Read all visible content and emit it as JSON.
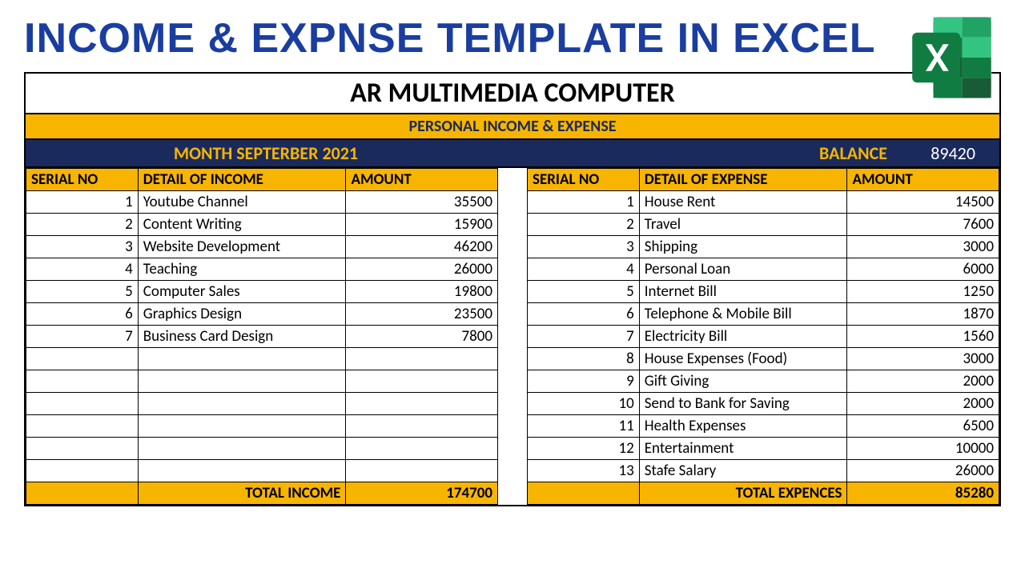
{
  "page": {
    "title": "INCOME & EXPNSE  TEMPLATE IN EXCEL"
  },
  "colors": {
    "title_text": "#1a3da0",
    "header_bg": "#f7b500",
    "navy_bg": "#1a2a5c",
    "balance_label": "#f7b500",
    "balance_value": "#ffffff",
    "border": "#000000",
    "background": "#ffffff",
    "excel_dark": "#185c37",
    "excel_mid": "#21a366",
    "excel_light": "#33c481"
  },
  "sheet": {
    "company": "AR MULTIMEDIA COMPUTER",
    "subheader": "PERSONAL INCOME & EXPENSE",
    "month_label": "MONTH SEPTERBER 2021",
    "balance_label": "BALANCE",
    "balance_value": "89420"
  },
  "income": {
    "columns": {
      "serial": "SERIAL NO",
      "detail": "DETAIL OF INCOME",
      "amount": "AMOUNT"
    },
    "rows": [
      {
        "serial": "1",
        "detail": "Youtube Channel",
        "amount": "35500"
      },
      {
        "serial": "2",
        "detail": "Content Writing",
        "amount": "15900"
      },
      {
        "serial": "3",
        "detail": "Website Development",
        "amount": "46200"
      },
      {
        "serial": "4",
        "detail": "Teaching",
        "amount": "26000"
      },
      {
        "serial": "5",
        "detail": "Computer Sales",
        "amount": "19800"
      },
      {
        "serial": "6",
        "detail": "Graphics Design",
        "amount": "23500"
      },
      {
        "serial": "7",
        "detail": "Business Card Design",
        "amount": "7800"
      },
      {
        "serial": "",
        "detail": "",
        "amount": ""
      },
      {
        "serial": "",
        "detail": "",
        "amount": ""
      },
      {
        "serial": "",
        "detail": "",
        "amount": ""
      },
      {
        "serial": "",
        "detail": "",
        "amount": ""
      },
      {
        "serial": "",
        "detail": "",
        "amount": ""
      },
      {
        "serial": "",
        "detail": "",
        "amount": ""
      }
    ],
    "total_label": "TOTAL INCOME",
    "total_value": "174700"
  },
  "expense": {
    "columns": {
      "serial": "SERIAL NO",
      "detail": "DETAIL OF EXPENSE",
      "amount": "AMOUNT"
    },
    "rows": [
      {
        "serial": "1",
        "detail": "House Rent",
        "amount": "14500"
      },
      {
        "serial": "2",
        "detail": "Travel",
        "amount": "7600"
      },
      {
        "serial": "3",
        "detail": "Shipping",
        "amount": "3000"
      },
      {
        "serial": "4",
        "detail": "Personal Loan",
        "amount": "6000"
      },
      {
        "serial": "5",
        "detail": "Internet Bill",
        "amount": "1250"
      },
      {
        "serial": "6",
        "detail": "Telephone & Mobile Bill",
        "amount": "1870"
      },
      {
        "serial": "7",
        "detail": "Electricity Bill",
        "amount": "1560"
      },
      {
        "serial": "8",
        "detail": "House Expenses (Food)",
        "amount": "3000"
      },
      {
        "serial": "9",
        "detail": "Gift Giving",
        "amount": "2000"
      },
      {
        "serial": "10",
        "detail": "Send to Bank for Saving",
        "amount": "2000"
      },
      {
        "serial": "11",
        "detail": "Health Expenses",
        "amount": "6500"
      },
      {
        "serial": "12",
        "detail": "Entertainment",
        "amount": "10000"
      },
      {
        "serial": "13",
        "detail": "Stafe Salary",
        "amount": "26000"
      }
    ],
    "total_label": "TOTAL EXPENCES",
    "total_value": "85280"
  }
}
